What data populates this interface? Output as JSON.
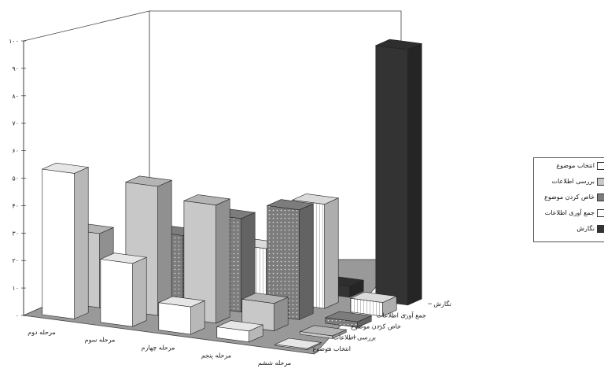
{
  "chart_data": {
    "type": "bar",
    "categories": [
      "مرحله دوم",
      "مرحله سوم",
      "مرحله چهارم",
      "مرحله پنجم",
      "مرحله ششم"
    ],
    "series": [
      {
        "name": "انتخاب موضوع",
        "values": [
          53,
          23,
          10,
          4,
          0
        ]
      },
      {
        "name": "بررسی اطلاعات",
        "values": [
          27,
          47,
          43,
          10,
          1
        ]
      },
      {
        "name": "خاص کردن موضوع",
        "values": [
          7,
          25,
          34,
          40,
          2
        ]
      },
      {
        "name": "جمع آوری اطلاعات",
        "values": [
          2,
          18,
          19,
          38,
          5
        ]
      },
      {
        "name": "نگارش",
        "values": [
          1,
          2,
          4,
          4,
          93
        ]
      }
    ],
    "ylim": [
      0,
      100
    ],
    "yticks": [
      "۰",
      "۱۰",
      "۲۰",
      "۳۰",
      "۴۰",
      "۵۰",
      "۶۰",
      "۷۰",
      "۸۰",
      "۹۰",
      "۱۰۰"
    ],
    "grid": false,
    "legend_position": "right",
    "colors": [
      "#ffffff",
      "#c8c8c8",
      "#8a8a8a",
      "#f2f2f2",
      "#333333"
    ],
    "textures": [
      "none",
      "none",
      "dots",
      "stripes",
      "none"
    ]
  }
}
